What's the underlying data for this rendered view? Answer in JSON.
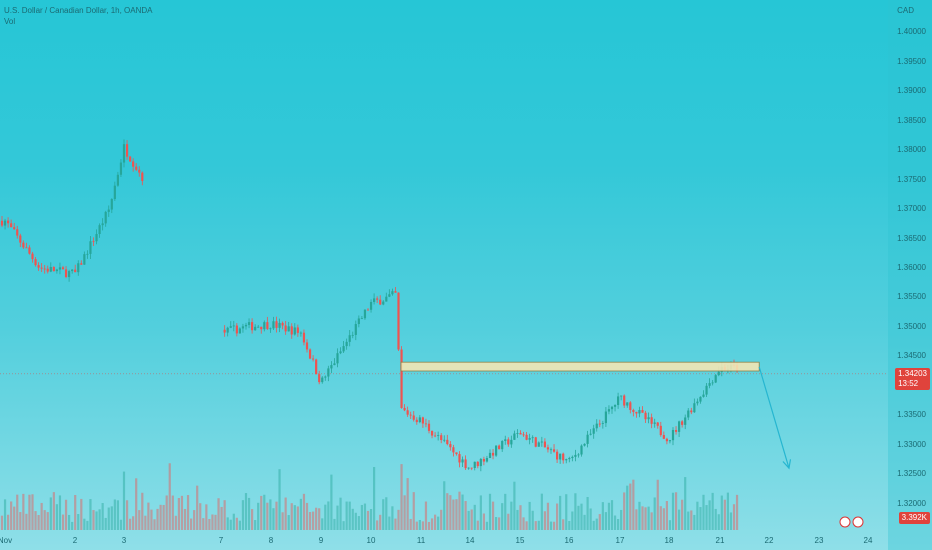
{
  "header": {
    "symbol_line": "U.S. Dollar / Canadian Dollar, 1h, OANDA",
    "vol_label": "Vol"
  },
  "axis": {
    "currency": "CAD"
  },
  "price_tag": {
    "value": "1.34203",
    "countdown": "13:52",
    "color": "#e0433c"
  },
  "volume_tag": {
    "value": "3.392K",
    "color": "#e0433c"
  },
  "colors": {
    "up": "#26a69a",
    "down": "#ef5350",
    "zone_fill": "#f3e6b4",
    "zone_stroke": "#8d7a3a",
    "arrow": "#26b6d0"
  },
  "chart_data": {
    "type": "candlestick",
    "title": "U.S. Dollar / Canadian Dollar, 1h, OANDA",
    "ylim": [
      1.3155,
      1.4055
    ],
    "y_ticks": [
      "1.40000",
      "1.39500",
      "1.39000",
      "1.38500",
      "1.38000",
      "1.37500",
      "1.37000",
      "1.36500",
      "1.36000",
      "1.35500",
      "1.35000",
      "1.34500",
      "1.34000",
      "1.33500",
      "1.33000",
      "1.32500",
      "1.32000"
    ],
    "x_ticks": [
      "Nov",
      "2",
      "3",
      "7",
      "8",
      "9",
      "10",
      "11",
      "14",
      "15",
      "16",
      "17",
      "18",
      "21",
      "22",
      "23",
      "24"
    ],
    "price_path": [
      {
        "x": "Nov",
        "y": 1.368
      },
      {
        "x": "1",
        "y": 1.36
      },
      {
        "x": "2",
        "y": 1.359
      },
      {
        "x": "2.7",
        "y": 1.37
      },
      {
        "x": "3",
        "y": 1.3805
      },
      {
        "x": "3.4",
        "y": 1.375
      },
      {
        "x": "4",
        "y": 1.365
      },
      {
        "x": "7",
        "y": 1.349
      },
      {
        "x": "7.5",
        "y": 1.35
      },
      {
        "x": "8",
        "y": 1.3505
      },
      {
        "x": "8.6",
        "y": 1.349
      },
      {
        "x": "9",
        "y": 1.3405
      },
      {
        "x": "10",
        "y": 1.354
      },
      {
        "x": "10.5",
        "y": 1.3555
      },
      {
        "x": "10.6",
        "y": 1.336
      },
      {
        "x": "11",
        "y": 1.334
      },
      {
        "x": "14",
        "y": 1.326
      },
      {
        "x": "15",
        "y": 1.332
      },
      {
        "x": "16",
        "y": 1.327
      },
      {
        "x": "17",
        "y": 1.338
      },
      {
        "x": "18",
        "y": 1.331
      },
      {
        "x": "21",
        "y": 1.343
      }
    ],
    "resistance_zone": {
      "from": 1.3425,
      "to": 1.344,
      "start_x": "10.6",
      "end_x": "21.8"
    },
    "projection_arrow": {
      "from": 1.3432,
      "to": 1.326,
      "start_x": "21.8",
      "end_x": "22.4"
    },
    "last_price": 1.34203
  }
}
